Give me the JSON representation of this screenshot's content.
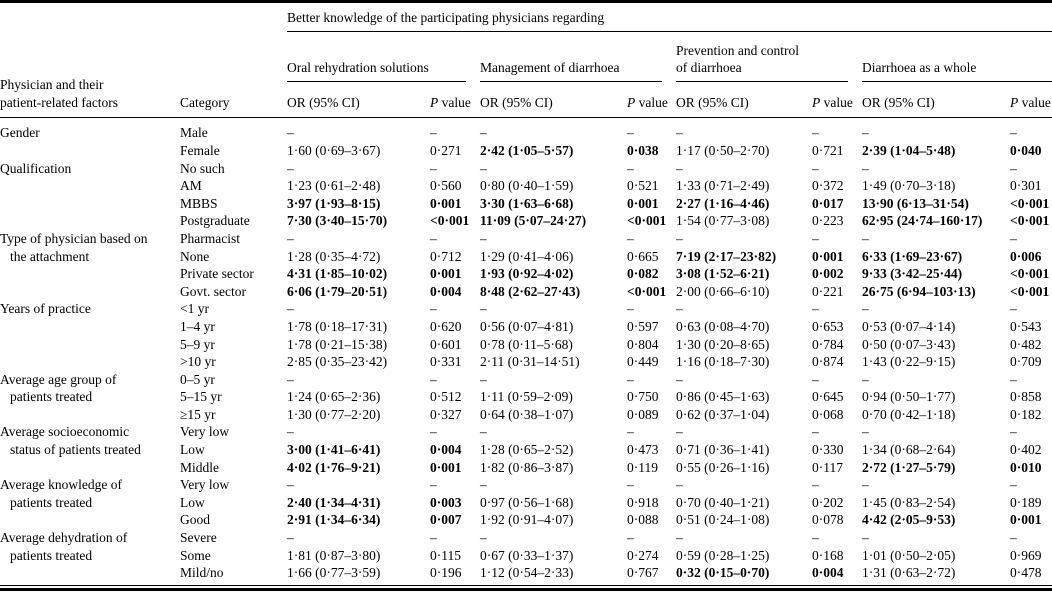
{
  "table": {
    "spanner": "Better knowledge of the participating physicians regarding",
    "stub_header": "Physician and their\npatient-related factors",
    "category_header": "Category",
    "or_header": "OR (95% CI)",
    "p_header_italic": "P",
    "p_header_rest": " value",
    "groups": [
      {
        "label": "Oral rehydration solutions"
      },
      {
        "label": "Management of diarrhoea"
      },
      {
        "label": "Prevention and control\nof diarrhoea"
      },
      {
        "label": "Diarrhoea as a whole"
      }
    ],
    "body_groups": [
      {
        "factor": "Gender",
        "rows": [
          {
            "category": "Male",
            "cells": [
              {
                "t": "–"
              },
              {
                "t": "–"
              },
              {
                "t": "–"
              },
              {
                "t": "–"
              },
              {
                "t": "–"
              },
              {
                "t": "–"
              },
              {
                "t": "–"
              },
              {
                "t": "–"
              }
            ]
          },
          {
            "category": "Female",
            "cells": [
              {
                "t": "1·60 (0·69–3·67)"
              },
              {
                "t": "0·271"
              },
              {
                "t": "2·42 (1·05–5·57)",
                "b": true
              },
              {
                "t": "0·038",
                "b": true
              },
              {
                "t": "1·17 (0·50–2·70)"
              },
              {
                "t": "0·721"
              },
              {
                "t": "2·39 (1·04–5·48)",
                "b": true
              },
              {
                "t": "0·040",
                "b": true
              }
            ]
          }
        ]
      },
      {
        "factor": "Qualification",
        "rows": [
          {
            "category": "No such",
            "cells": [
              {
                "t": "–"
              },
              {
                "t": "–"
              },
              {
                "t": "–"
              },
              {
                "t": "–"
              },
              {
                "t": "–"
              },
              {
                "t": "–"
              },
              {
                "t": "–"
              },
              {
                "t": "–"
              }
            ]
          },
          {
            "category": "AM",
            "cells": [
              {
                "t": "1·23 (0·61–2·48)"
              },
              {
                "t": "0·560"
              },
              {
                "t": "0·80 (0·40–1·59)"
              },
              {
                "t": "0·521"
              },
              {
                "t": "1·33 (0·71–2·49)"
              },
              {
                "t": "0·372"
              },
              {
                "t": "1·49 (0·70–3·18)"
              },
              {
                "t": "0·301"
              }
            ]
          },
          {
            "category": "MBBS",
            "cells": [
              {
                "t": "3·97 (1·93–8·15)",
                "b": true
              },
              {
                "t": "0·001",
                "b": true
              },
              {
                "t": "3·30 (1·63–6·68)",
                "b": true
              },
              {
                "t": "0·001",
                "b": true
              },
              {
                "t": "2·27 (1·16–4·46)",
                "b": true
              },
              {
                "t": "0·017",
                "b": true
              },
              {
                "t": "13·90 (6·13–31·54)",
                "b": true
              },
              {
                "t": "<0·001",
                "b": true
              }
            ]
          },
          {
            "category": "Postgraduate",
            "cells": [
              {
                "t": "7·30 (3·40–15·70)",
                "b": true
              },
              {
                "t": "<0·001",
                "b": true
              },
              {
                "t": "11·09 (5·07–24·27)",
                "b": true
              },
              {
                "t": "<0·001",
                "b": true
              },
              {
                "t": "1·54 (0·77–3·08)"
              },
              {
                "t": "0·223"
              },
              {
                "t": "62·95 (24·74–160·17)",
                "b": true
              },
              {
                "t": "<0·001",
                "b": true
              }
            ]
          }
        ]
      },
      {
        "factor": "Type of physician based on\nthe attachment",
        "rows": [
          {
            "category": "Pharmacist",
            "cells": [
              {
                "t": "–"
              },
              {
                "t": "–"
              },
              {
                "t": "–"
              },
              {
                "t": "–"
              },
              {
                "t": "–"
              },
              {
                "t": "–"
              },
              {
                "t": "–"
              },
              {
                "t": "–"
              }
            ]
          },
          {
            "category": "None",
            "cells": [
              {
                "t": "1·28 (0·35–4·72)"
              },
              {
                "t": "0·712"
              },
              {
                "t": "1·29 (0·41–4·06)"
              },
              {
                "t": "0·665"
              },
              {
                "t": "7·19 (2·17–23·82)",
                "b": true
              },
              {
                "t": "0·001",
                "b": true
              },
              {
                "t": "6·33 (1·69–23·67)",
                "b": true
              },
              {
                "t": "0·006",
                "b": true
              }
            ]
          },
          {
            "category": "Private sector",
            "cells": [
              {
                "t": "4·31 (1·85–10·02)",
                "b": true
              },
              {
                "t": "0·001",
                "b": true
              },
              {
                "t": "1·93 (0·92–4·02)",
                "b": true
              },
              {
                "t": "0·082",
                "b": true
              },
              {
                "t": "3·08 (1·52–6·21)",
                "b": true
              },
              {
                "t": "0·002",
                "b": true
              },
              {
                "t": "9·33 (3·42–25·44)",
                "b": true
              },
              {
                "t": "<0·001",
                "b": true
              }
            ]
          },
          {
            "category": "Govt. sector",
            "cells": [
              {
                "t": "6·06 (1·79–20·51)",
                "b": true
              },
              {
                "t": "0·004",
                "b": true
              },
              {
                "t": "8·48 (2·62–27·43)",
                "b": true
              },
              {
                "t": "<0·001",
                "b": true
              },
              {
                "t": "2·00 (0·66–6·10)"
              },
              {
                "t": "0·221"
              },
              {
                "t": "26·75 (6·94–103·13)",
                "b": true
              },
              {
                "t": "<0·001",
                "b": true
              }
            ]
          }
        ]
      },
      {
        "factor": "Years of practice",
        "rows": [
          {
            "category": "<1 yr",
            "cells": [
              {
                "t": "–"
              },
              {
                "t": "–"
              },
              {
                "t": "–"
              },
              {
                "t": "–"
              },
              {
                "t": "–"
              },
              {
                "t": "–"
              },
              {
                "t": "–"
              },
              {
                "t": "–"
              }
            ]
          },
          {
            "category": "1–4 yr",
            "cells": [
              {
                "t": "1·78 (0·18–17·31)"
              },
              {
                "t": "0·620"
              },
              {
                "t": "0·56 (0·07–4·81)"
              },
              {
                "t": "0·597"
              },
              {
                "t": "0·63 (0·08–4·70)"
              },
              {
                "t": "0·653"
              },
              {
                "t": "0·53 (0·07–4·14)"
              },
              {
                "t": "0·543"
              }
            ]
          },
          {
            "category": "5–9 yr",
            "cells": [
              {
                "t": "1·78 (0·21–15·38)"
              },
              {
                "t": "0·601"
              },
              {
                "t": "0·78 (0·11–5·68)"
              },
              {
                "t": "0·804"
              },
              {
                "t": "1·30 (0·20–8·65)"
              },
              {
                "t": "0·784"
              },
              {
                "t": "0·50 (0·07–3·43)"
              },
              {
                "t": "0·482"
              }
            ]
          },
          {
            "category": ">10 yr",
            "cells": [
              {
                "t": "2·85 (0·35–23·42)"
              },
              {
                "t": "0·331"
              },
              {
                "t": "2·11 (0·31–14·51)"
              },
              {
                "t": "0·449"
              },
              {
                "t": "1·16 (0·18–7·30)"
              },
              {
                "t": "0·874"
              },
              {
                "t": "1·43 (0·22–9·15)"
              },
              {
                "t": "0·709"
              }
            ]
          }
        ]
      },
      {
        "factor": "Average age group of\npatients treated",
        "rows": [
          {
            "category": "0–5 yr",
            "cells": [
              {
                "t": "–"
              },
              {
                "t": "–"
              },
              {
                "t": "–"
              },
              {
                "t": "–"
              },
              {
                "t": "–"
              },
              {
                "t": "–"
              },
              {
                "t": "–"
              },
              {
                "t": "–"
              }
            ]
          },
          {
            "category": "5–15 yr",
            "cells": [
              {
                "t": "1·24 (0·65–2·36)"
              },
              {
                "t": "0·512"
              },
              {
                "t": "1·11 (0·59–2·09)"
              },
              {
                "t": "0·750"
              },
              {
                "t": "0·86 (0·45–1·63)"
              },
              {
                "t": "0·645"
              },
              {
                "t": "0·94 (0·50–1·77)"
              },
              {
                "t": "0·858"
              }
            ]
          },
          {
            "category": "≥15 yr",
            "cells": [
              {
                "t": "1·30 (0·77–2·20)"
              },
              {
                "t": "0·327"
              },
              {
                "t": "0·64 (0·38–1·07)"
              },
              {
                "t": "0·089"
              },
              {
                "t": "0·62 (0·37–1·04)"
              },
              {
                "t": "0·068"
              },
              {
                "t": "0·70 (0·42–1·18)"
              },
              {
                "t": "0·182"
              }
            ]
          }
        ]
      },
      {
        "factor": "Average socioeconomic\nstatus of patients treated",
        "rows": [
          {
            "category": "Very low",
            "cells": [
              {
                "t": "–"
              },
              {
                "t": "–"
              },
              {
                "t": "–"
              },
              {
                "t": "–"
              },
              {
                "t": "–"
              },
              {
                "t": "–"
              },
              {
                "t": "–"
              },
              {
                "t": "–"
              }
            ]
          },
          {
            "category": "Low",
            "cells": [
              {
                "t": "3·00 (1·41–6·41)",
                "b": true
              },
              {
                "t": "0·004",
                "b": true
              },
              {
                "t": "1·28 (0·65–2·52)"
              },
              {
                "t": "0·473"
              },
              {
                "t": "0·71 (0·36–1·41)"
              },
              {
                "t": "0·330"
              },
              {
                "t": "1·34 (0·68–2·64)"
              },
              {
                "t": "0·402"
              }
            ]
          },
          {
            "category": "Middle",
            "cells": [
              {
                "t": "4·02 (1·76–9·21)",
                "b": true
              },
              {
                "t": "0·001",
                "b": true
              },
              {
                "t": "1·82 (0·86–3·87)"
              },
              {
                "t": "0·119"
              },
              {
                "t": "0·55 (0·26–1·16)"
              },
              {
                "t": "0·117"
              },
              {
                "t": "2·72 (1·27–5·79)",
                "b": true
              },
              {
                "t": "0·010",
                "b": true
              }
            ]
          }
        ]
      },
      {
        "factor": "Average knowledge of\npatients treated",
        "rows": [
          {
            "category": "Very low",
            "cells": [
              {
                "t": "–"
              },
              {
                "t": "–"
              },
              {
                "t": "–"
              },
              {
                "t": "–"
              },
              {
                "t": "–"
              },
              {
                "t": "–"
              },
              {
                "t": "–"
              },
              {
                "t": "–"
              }
            ]
          },
          {
            "category": "Low",
            "cells": [
              {
                "t": "2·40 (1·34–4·31)",
                "b": true
              },
              {
                "t": "0·003",
                "b": true
              },
              {
                "t": "0·97 (0·56–1·68)"
              },
              {
                "t": "0·918"
              },
              {
                "t": "0·70 (0·40–1·21)"
              },
              {
                "t": "0·202"
              },
              {
                "t": "1·45 (0·83–2·54)"
              },
              {
                "t": "0·189"
              }
            ]
          },
          {
            "category": "Good",
            "cells": [
              {
                "t": "2·91 (1·34–6·34)",
                "b": true
              },
              {
                "t": "0·007",
                "b": true
              },
              {
                "t": "1·92 (0·91–4·07)"
              },
              {
                "t": "0·088"
              },
              {
                "t": "0·51 (0·24–1·08)"
              },
              {
                "t": "0·078"
              },
              {
                "t": "4·42 (2·05–9·53)",
                "b": true
              },
              {
                "t": "0·001",
                "b": true
              }
            ]
          }
        ]
      },
      {
        "factor": "Average dehydration of\npatients treated",
        "rows": [
          {
            "category": "Severe",
            "cells": [
              {
                "t": "–"
              },
              {
                "t": "–"
              },
              {
                "t": "–"
              },
              {
                "t": "–"
              },
              {
                "t": "–"
              },
              {
                "t": "–"
              },
              {
                "t": "–"
              },
              {
                "t": "–"
              }
            ]
          },
          {
            "category": "Some",
            "cells": [
              {
                "t": "1·81 (0·87–3·80)"
              },
              {
                "t": "0·115"
              },
              {
                "t": "0·67 (0·33–1·37)"
              },
              {
                "t": "0·274"
              },
              {
                "t": "0·59 (0·28–1·25)"
              },
              {
                "t": "0·168"
              },
              {
                "t": "1·01 (0·50–2·05)"
              },
              {
                "t": "0·969"
              }
            ]
          },
          {
            "category": "Mild/no",
            "cells": [
              {
                "t": "1·66 (0·77–3·59)"
              },
              {
                "t": "0·196"
              },
              {
                "t": "1·12 (0·54–2·33)"
              },
              {
                "t": "0·767"
              },
              {
                "t": "0·32 (0·15–0·70)",
                "b": true
              },
              {
                "t": "0·004",
                "b": true
              },
              {
                "t": "1·31 (0·63–2·72)"
              },
              {
                "t": "0·478"
              }
            ]
          }
        ]
      }
    ]
  }
}
